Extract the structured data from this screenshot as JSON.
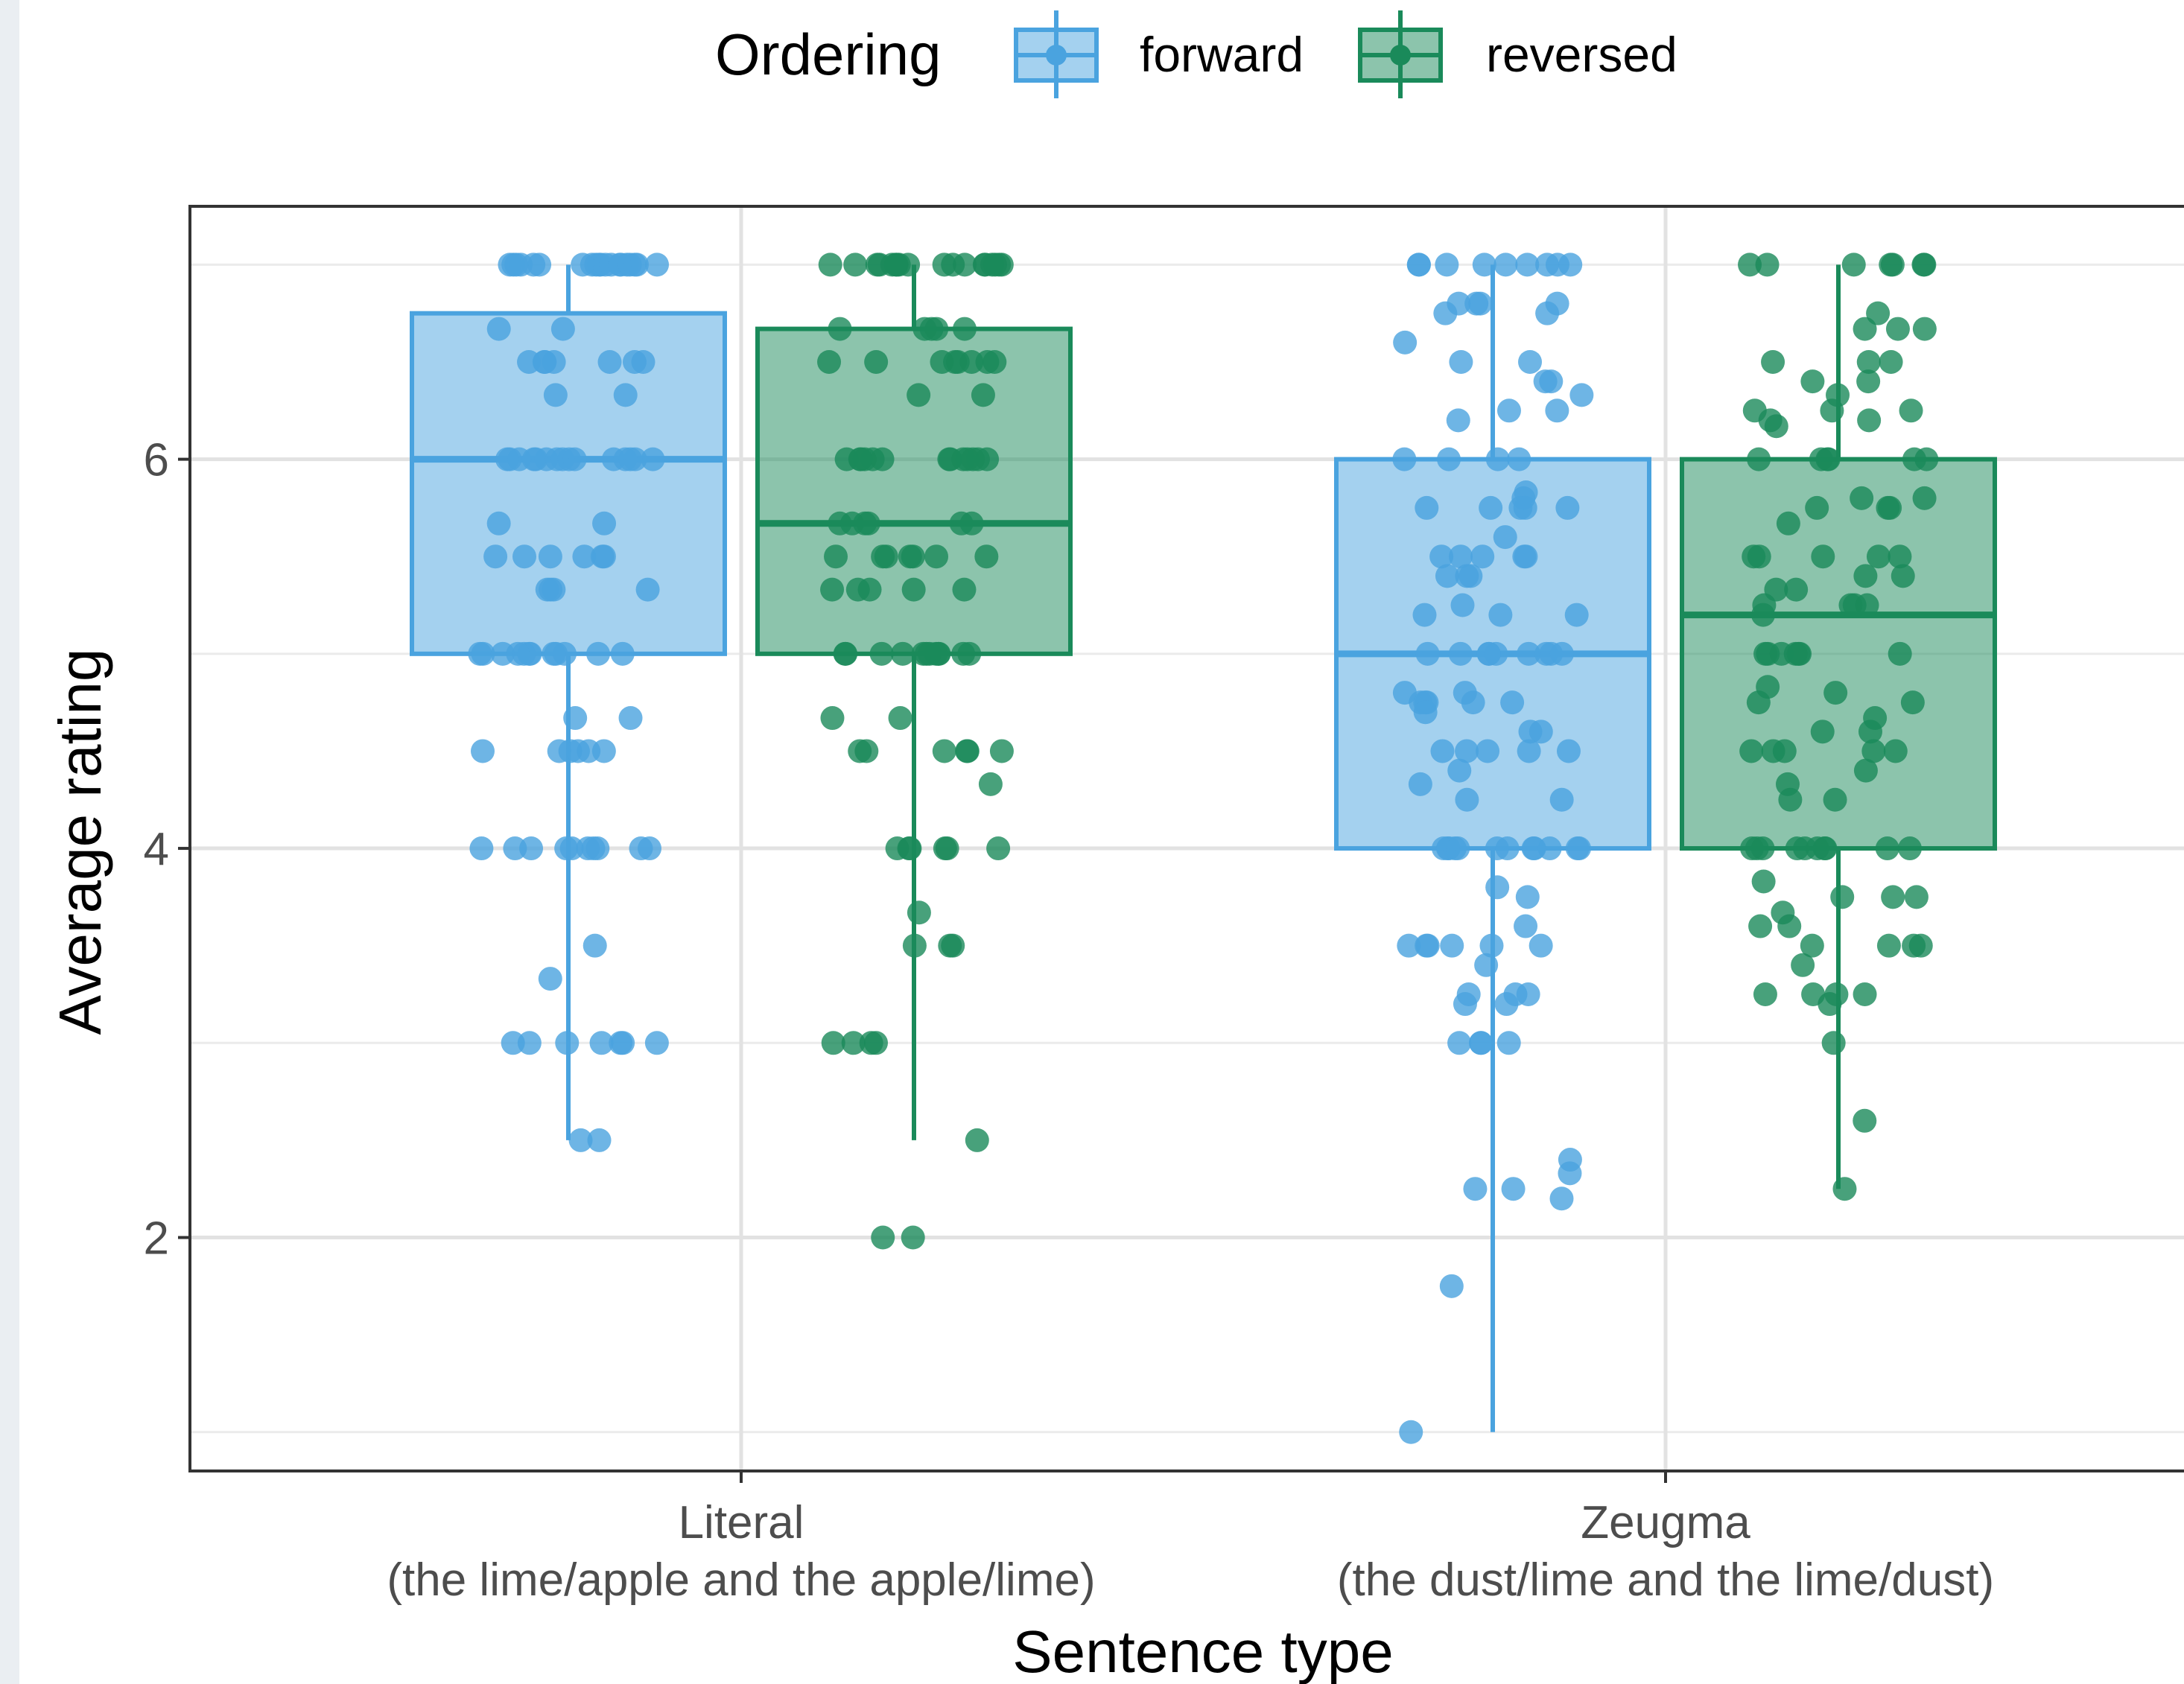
{
  "chart_data": {
    "type": "box",
    "xlabel": "Sentence type",
    "ylabel": "Average rating",
    "ylim": [
      0.8,
      7.3
    ],
    "yticks": [
      2,
      4,
      6
    ],
    "grid": true,
    "legend_position": "top",
    "legend_title": "Ordering",
    "categories": [
      {
        "line1": "Literal",
        "line2": "(the lime/apple and the apple/lime)"
      },
      {
        "line1": "Zeugma",
        "line2": "(the dust/lime and the lime/dust)"
      }
    ],
    "series": [
      {
        "name": "forward",
        "color": "#4aa3df",
        "boxes": [
          {
            "min": 2.5,
            "q1": 5.0,
            "median": 6.0,
            "q3": 6.75,
            "max": 7.0
          },
          {
            "min": 1.0,
            "q1": 4.0,
            "median": 5.0,
            "q3": 6.0,
            "max": 7.0
          }
        ],
        "points": [
          [
            7,
            7,
            7,
            7,
            7,
            7,
            7,
            7,
            7,
            7,
            7,
            7,
            7,
            7,
            7,
            7,
            7,
            7,
            7,
            7,
            6.67,
            6.67,
            6.5,
            6.5,
            6.5,
            6.5,
            6.5,
            6.5,
            6.5,
            6.33,
            6.33,
            6,
            6,
            6,
            6,
            6,
            6,
            6,
            6,
            6,
            6,
            6,
            6,
            6,
            6,
            6,
            5.67,
            5.67,
            5.5,
            5.5,
            5.5,
            5.5,
            5.5,
            5.5,
            5.33,
            5.33,
            5.33,
            5.33,
            5,
            5,
            5,
            5,
            5,
            5,
            5,
            5,
            5,
            5,
            5,
            5,
            4.67,
            4.67,
            4.5,
            4.5,
            4.5,
            4.5,
            4.5,
            4.5,
            4,
            4,
            4,
            4,
            4,
            4,
            4,
            4,
            4,
            4,
            3.5,
            3.33,
            3,
            3,
            3,
            3,
            3,
            3,
            3,
            2.5,
            2.5
          ],
          [
            7,
            7,
            7,
            7,
            7,
            7,
            7,
            7,
            7,
            6.8,
            6.8,
            6.75,
            6.75,
            6.8,
            6.8,
            6.6,
            6.5,
            6.5,
            6.4,
            6.4,
            6.33,
            6.25,
            6.25,
            6.2,
            6,
            6,
            6,
            6,
            5.83,
            5.8,
            5.75,
            5.75,
            5.75,
            5.75,
            5.75,
            5.6,
            5.5,
            5.5,
            5.5,
            5.5,
            5.5,
            5.4,
            5.4,
            5.4,
            5.25,
            5.2,
            5.2,
            5.2,
            5,
            5,
            5,
            5,
            5,
            5,
            5,
            5,
            5,
            4.8,
            4.8,
            4.75,
            4.75,
            4.75,
            4.75,
            4.75,
            4.7,
            4.6,
            4.6,
            4.5,
            4.5,
            4.5,
            4.5,
            4.5,
            4.4,
            4.33,
            4.25,
            4.25,
            4,
            4,
            4,
            4,
            4,
            4,
            4,
            4,
            4,
            4,
            4,
            4,
            3.8,
            3.75,
            3.6,
            3.5,
            3.5,
            3.5,
            3.5,
            3.5,
            3.5,
            3.4,
            3.25,
            3.25,
            3.25,
            3.2,
            3.2,
            3,
            3,
            3,
            3,
            2.4,
            2.33,
            2.25,
            2.25,
            2.2,
            1.75,
            1.0
          ]
        ]
      },
      {
        "name": "reversed",
        "color": "#1a8a5a",
        "boxes": [
          {
            "min": 2.5,
            "q1": 5.0,
            "median": 5.67,
            "q3": 6.67,
            "max": 7.0
          },
          {
            "min": 2.25,
            "q1": 4.0,
            "median": 5.2,
            "q3": 6.0,
            "max": 7.0
          }
        ],
        "points": [
          [
            7,
            7,
            7,
            7,
            7,
            7,
            7,
            7,
            7,
            7,
            7,
            7,
            7,
            7,
            7,
            7,
            7,
            7,
            6.67,
            6.67,
            6.67,
            6.67,
            6.67,
            6.5,
            6.5,
            6.5,
            6.5,
            6.5,
            6.5,
            6.5,
            6.5,
            6.33,
            6.33,
            6,
            6,
            6,
            6,
            6,
            6,
            6,
            6,
            6,
            6,
            6,
            6,
            6,
            5.67,
            5.67,
            5.67,
            5.67,
            5.67,
            5.67,
            5.5,
            5.5,
            5.5,
            5.5,
            5.5,
            5.5,
            5.5,
            5.33,
            5.33,
            5.33,
            5.33,
            5.33,
            5,
            5,
            5,
            5,
            5,
            5,
            5,
            5,
            5,
            5,
            5,
            5,
            4.67,
            4.67,
            4.5,
            4.5,
            4.5,
            4.5,
            4.5,
            4.5,
            4.33,
            4,
            4,
            4,
            4,
            4,
            4,
            3.67,
            3.5,
            3.5,
            3.5,
            3,
            3,
            3,
            3,
            2.5,
            2.0,
            2.0
          ],
          [
            7,
            7,
            7,
            7,
            7,
            7,
            7,
            6.75,
            6.67,
            6.67,
            6.67,
            6.5,
            6.5,
            6.5,
            6.4,
            6.4,
            6.33,
            6.25,
            6.25,
            6.25,
            6.2,
            6.2,
            6.17,
            6,
            6,
            6,
            6,
            6,
            6,
            5.8,
            5.8,
            5.75,
            5.75,
            5.75,
            5.67,
            5.5,
            5.5,
            5.5,
            5.5,
            5.5,
            5.4,
            5.4,
            5.33,
            5.33,
            5.25,
            5.25,
            5.25,
            5.25,
            5.2,
            5,
            5,
            5,
            5,
            5,
            5,
            5,
            4.83,
            4.8,
            4.75,
            4.75,
            4.67,
            4.6,
            4.6,
            4.5,
            4.5,
            4.5,
            4.5,
            4.5,
            4.4,
            4.33,
            4.25,
            4.25,
            4,
            4,
            4,
            4,
            4,
            4,
            4,
            4,
            4,
            4,
            3.83,
            3.75,
            3.75,
            3.75,
            3.67,
            3.6,
            3.6,
            3.5,
            3.5,
            3.5,
            3.5,
            3.4,
            3.25,
            3.25,
            3.25,
            3.25,
            3.2,
            3,
            2.6,
            2.25
          ]
        ]
      }
    ]
  }
}
